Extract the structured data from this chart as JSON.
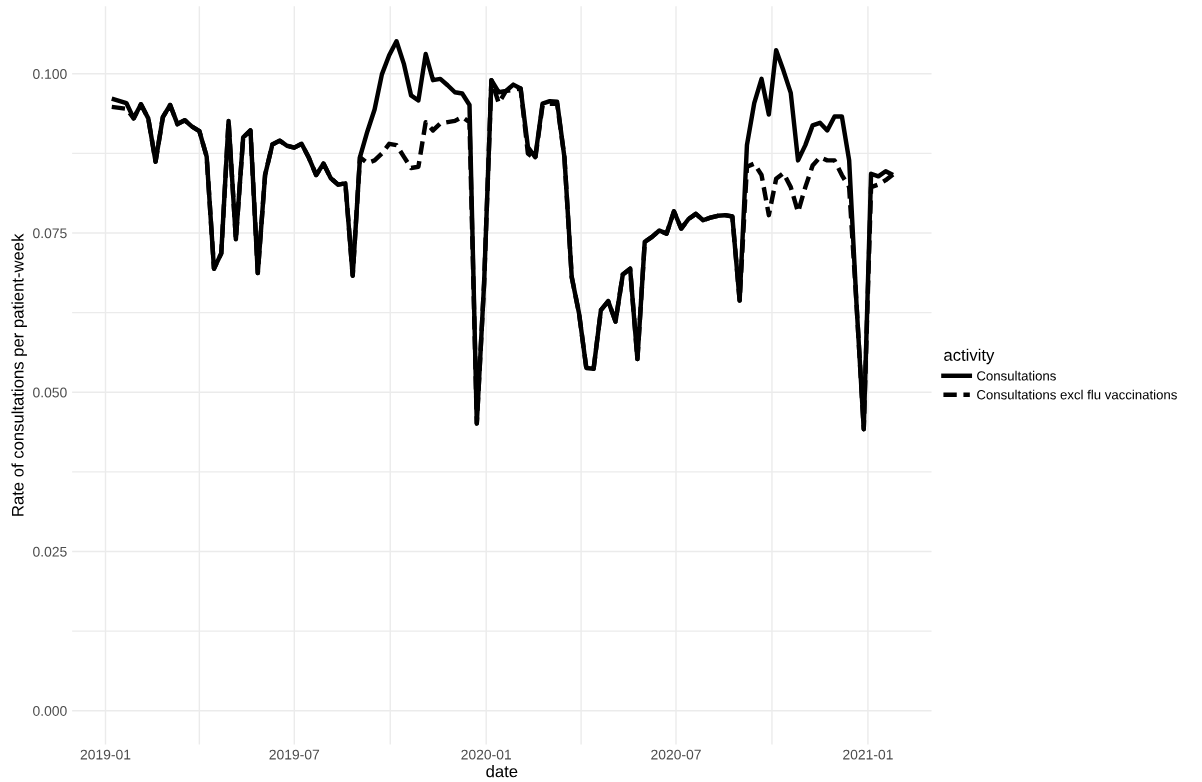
{
  "chart_data": {
    "type": "line",
    "xlabel": "date",
    "ylabel": "Rate of consultations per patient-week",
    "legend_title": "activity",
    "legend": "right",
    "grid": true,
    "xlim": [
      "2018-11-30",
      "2021-03-03"
    ],
    "ylim": [
      -0.0053,
      0.1106
    ],
    "xticks": [
      {
        "value": "2019-01-01",
        "label": "2019-01"
      },
      {
        "value": "2019-04-01",
        "label": null
      },
      {
        "value": "2019-07-01",
        "label": "2019-07"
      },
      {
        "value": "2019-10-01",
        "label": null
      },
      {
        "value": "2020-01-01",
        "label": "2020-01"
      },
      {
        "value": "2020-04-01",
        "label": null
      },
      {
        "value": "2020-07-01",
        "label": "2020-07"
      },
      {
        "value": "2020-10-01",
        "label": null
      },
      {
        "value": "2021-01-01",
        "label": "2021-01"
      }
    ],
    "yticks": [
      {
        "value": 0,
        "label": "0.000"
      },
      {
        "value": 0.0125,
        "label": null
      },
      {
        "value": 0.025,
        "label": "0.025"
      },
      {
        "value": 0.0375,
        "label": null
      },
      {
        "value": 0.05,
        "label": "0.050"
      },
      {
        "value": 0.0625,
        "label": null
      },
      {
        "value": 0.075,
        "label": "0.075"
      },
      {
        "value": 0.0875,
        "label": null
      },
      {
        "value": 0.1,
        "label": "0.100"
      }
    ],
    "x": [
      "2019-01-07",
      "2019-01-21",
      "2019-01-28",
      "2019-02-04",
      "2019-02-11",
      "2019-02-18",
      "2019-02-25",
      "2019-03-04",
      "2019-03-11",
      "2019-03-18",
      "2019-03-25",
      "2019-04-01",
      "2019-04-08",
      "2019-04-15",
      "2019-04-22",
      "2019-04-29",
      "2019-05-06",
      "2019-05-13",
      "2019-05-20",
      "2019-05-27",
      "2019-06-03",
      "2019-06-10",
      "2019-06-17",
      "2019-06-24",
      "2019-07-01",
      "2019-07-08",
      "2019-07-15",
      "2019-07-22",
      "2019-07-29",
      "2019-08-05",
      "2019-08-12",
      "2019-08-19",
      "2019-08-26",
      "2019-09-02",
      "2019-09-09",
      "2019-09-16",
      "2019-09-23",
      "2019-09-30",
      "2019-10-07",
      "2019-10-14",
      "2019-10-21",
      "2019-10-28",
      "2019-11-04",
      "2019-11-11",
      "2019-11-18",
      "2019-11-25",
      "2019-12-02",
      "2019-12-09",
      "2019-12-16",
      "2019-12-23",
      "2019-12-30",
      "2020-01-06",
      "2020-01-13",
      "2020-01-20",
      "2020-01-27",
      "2020-02-03",
      "2020-02-10",
      "2020-02-17",
      "2020-02-24",
      "2020-03-02",
      "2020-03-09",
      "2020-03-16",
      "2020-03-23",
      "2020-03-30",
      "2020-04-06",
      "2020-04-13",
      "2020-04-20",
      "2020-04-27",
      "2020-05-04",
      "2020-05-11",
      "2020-05-18",
      "2020-05-25",
      "2020-06-01",
      "2020-06-08",
      "2020-06-15",
      "2020-06-22",
      "2020-06-29",
      "2020-07-06",
      "2020-07-13",
      "2020-07-20",
      "2020-07-27",
      "2020-08-03",
      "2020-08-10",
      "2020-08-17",
      "2020-08-24",
      "2020-08-31",
      "2020-09-07",
      "2020-09-14",
      "2020-09-21",
      "2020-09-28",
      "2020-10-05",
      "2020-10-12",
      "2020-10-19",
      "2020-10-26",
      "2020-11-02",
      "2020-11-09",
      "2020-11-16",
      "2020-11-23",
      "2020-11-30",
      "2020-12-07",
      "2020-12-14",
      "2020-12-21",
      "2020-12-28",
      "2021-01-04",
      "2021-01-11",
      "2021-01-18",
      "2021-01-25"
    ],
    "series": [
      {
        "name": "Consultations",
        "color": "#000000",
        "line_style": "solid",
        "values": [
          0.0961,
          0.0954,
          0.093,
          0.0952,
          0.093,
          0.0862,
          0.0932,
          0.0951,
          0.0921,
          0.0927,
          0.0917,
          0.091,
          0.087,
          0.0694,
          0.0718,
          0.0926,
          0.074,
          0.09,
          0.0911,
          0.0687,
          0.0841,
          0.0889,
          0.0895,
          0.0887,
          0.0884,
          0.089,
          0.0868,
          0.0841,
          0.0859,
          0.0836,
          0.0826,
          0.0828,
          0.0683,
          0.0869,
          0.0909,
          0.0944,
          0.0999,
          0.1029,
          0.1051,
          0.1016,
          0.0966,
          0.0958,
          0.1031,
          0.099,
          0.0992,
          0.0982,
          0.0971,
          0.0969,
          0.0951,
          0.0451,
          0.0671,
          0.099,
          0.0971,
          0.0973,
          0.0983,
          0.0977,
          0.0885,
          0.0869,
          0.0953,
          0.0957,
          0.0956,
          0.0869,
          0.0681,
          0.0624,
          0.0538,
          0.0537,
          0.0629,
          0.0643,
          0.0611,
          0.0685,
          0.0694,
          0.0552,
          0.0736,
          0.0744,
          0.0754,
          0.0749,
          0.0784,
          0.0757,
          0.0772,
          0.078,
          0.077,
          0.0774,
          0.0777,
          0.0778,
          0.0776,
          0.0644,
          0.0888,
          0.0954,
          0.0992,
          0.0936,
          0.1037,
          0.1005,
          0.097,
          0.0864,
          0.0888,
          0.0919,
          0.0923,
          0.0911,
          0.0933,
          0.0933,
          0.0864,
          0.064,
          0.0442,
          0.0843,
          0.0839,
          0.0847,
          0.0841
        ]
      },
      {
        "name": "Consultations excl flu vaccinations",
        "color": "#000000",
        "line_style": "dashed",
        "values": [
          0.0948,
          0.0945,
          0.093,
          0.0952,
          0.093,
          0.0862,
          0.0932,
          0.0951,
          0.0921,
          0.0927,
          0.0917,
          0.091,
          0.087,
          0.0694,
          0.0718,
          0.0926,
          0.074,
          0.09,
          0.0911,
          0.0687,
          0.0841,
          0.0889,
          0.0895,
          0.0887,
          0.0884,
          0.089,
          0.0868,
          0.0841,
          0.0859,
          0.0836,
          0.0826,
          0.0828,
          0.0683,
          0.0869,
          0.086,
          0.0864,
          0.0875,
          0.089,
          0.0888,
          0.087,
          0.0852,
          0.0854,
          0.0924,
          0.0911,
          0.0922,
          0.0924,
          0.0926,
          0.0932,
          0.0924,
          0.0451,
          0.0671,
          0.099,
          0.0954,
          0.0973,
          0.0975,
          0.0977,
          0.0875,
          0.0866,
          0.095,
          0.0953,
          0.0953,
          0.0869,
          0.0681,
          0.0624,
          0.0538,
          0.0537,
          0.0629,
          0.0643,
          0.0611,
          0.0685,
          0.0694,
          0.0552,
          0.0736,
          0.0744,
          0.0754,
          0.0749,
          0.0784,
          0.0757,
          0.0772,
          0.078,
          0.077,
          0.0774,
          0.0777,
          0.0778,
          0.0776,
          0.0644,
          0.0854,
          0.0859,
          0.0841,
          0.0778,
          0.0835,
          0.0844,
          0.0822,
          0.0783,
          0.0822,
          0.0856,
          0.0869,
          0.0864,
          0.0864,
          0.0841,
          0.0822,
          0.064,
          0.0442,
          0.0822,
          0.0826,
          0.0833,
          0.0842
        ]
      }
    ]
  }
}
